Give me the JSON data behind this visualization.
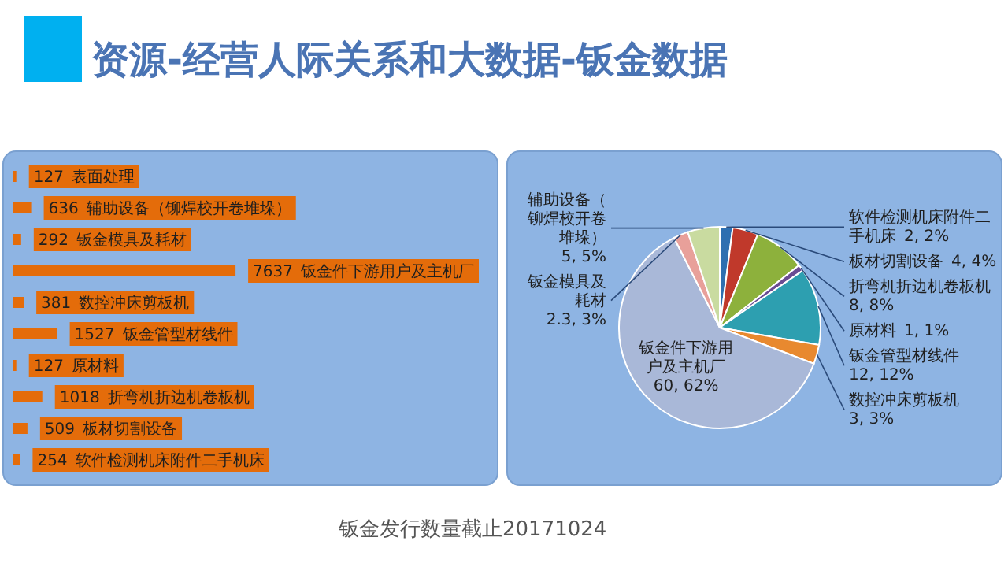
{
  "chart_data": [
    {
      "type": "bar",
      "orientation": "horizontal",
      "title": "资源-经营人际关系和大数据-钣金数据",
      "categories": [
        "表面处理",
        "辅助设备（铆焊校开卷堆垛）",
        "钣金模具及耗材",
        "钣金件下游用户及主机厂",
        "数控冲床剪板机",
        "钣金管型材线件",
        "原材料",
        "折弯机折边机卷板机",
        "板材切割设备",
        "软件检测机床附件二手机床"
      ],
      "values": [
        127,
        636,
        292,
        7637,
        381,
        1527,
        127,
        1018,
        509,
        254
      ],
      "value_labels": [
        "127",
        "636",
        "292",
        "7637",
        "381",
        "1527",
        "127",
        "1018",
        "509",
        "254"
      ],
      "color": "#e46c0a",
      "tick_labels": false,
      "annotations": [
        "钣金发行数量截止20171024"
      ]
    },
    {
      "type": "pie",
      "categories": [
        "软件检测机床附件二手机床",
        "板材切割设备",
        "折弯机折边机卷板机",
        "原材料",
        "钣金管型材线件",
        "数控冲床剪板机",
        "钣金件下游用户及主机厂",
        "钣金模具及耗材",
        "辅助设备（铆焊校开卷堆垛）"
      ],
      "values": [
        2,
        4,
        8,
        1,
        12,
        3,
        60,
        2.3,
        5
      ],
      "colors": [
        "#2e6fb0",
        "#c0392b",
        "#8db13c",
        "#6a4c93",
        "#2d9fb0",
        "#e8892f",
        "#a9b8d8",
        "#e8a09a",
        "#c9dba0"
      ],
      "value_labels": [
        "2, 2%",
        "4, 4%",
        "8, 8%",
        "1, 1%",
        "12, 12%",
        "3, 3%",
        "60, 62%",
        "2.3, 3%",
        "5, 5%"
      ]
    }
  ]
}
